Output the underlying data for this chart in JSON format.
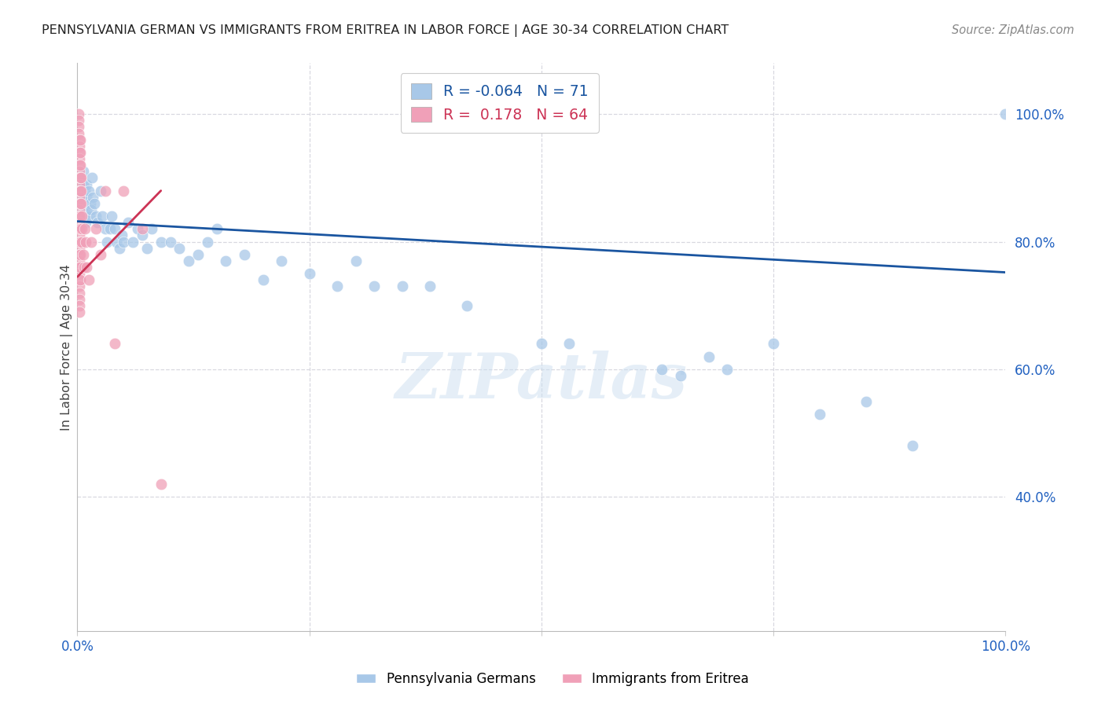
{
  "title": "PENNSYLVANIA GERMAN VS IMMIGRANTS FROM ERITREA IN LABOR FORCE | AGE 30-34 CORRELATION CHART",
  "source_text": "Source: ZipAtlas.com",
  "ylabel": "In Labor Force | Age 30-34",
  "xlim": [
    0.0,
    1.0
  ],
  "ylim": [
    0.19,
    1.08
  ],
  "blue_R": -0.064,
  "blue_N": 71,
  "pink_R": 0.178,
  "pink_N": 64,
  "blue_color": "#a8c8e8",
  "pink_color": "#f0a0b8",
  "blue_line_color": "#1a55a0",
  "pink_line_color": "#cc3355",
  "watermark": "ZIPatlas",
  "blue_scatter_x": [
    0.003,
    0.004,
    0.005,
    0.005,
    0.006,
    0.006,
    0.006,
    0.007,
    0.007,
    0.008,
    0.008,
    0.009,
    0.009,
    0.01,
    0.01,
    0.01,
    0.012,
    0.013,
    0.014,
    0.015,
    0.016,
    0.017,
    0.018,
    0.02,
    0.022,
    0.025,
    0.027,
    0.03,
    0.032,
    0.035,
    0.037,
    0.04,
    0.042,
    0.045,
    0.048,
    0.05,
    0.055,
    0.06,
    0.065,
    0.07,
    0.075,
    0.08,
    0.09,
    0.1,
    0.11,
    0.12,
    0.13,
    0.14,
    0.15,
    0.16,
    0.18,
    0.2,
    0.22,
    0.25,
    0.28,
    0.3,
    0.32,
    0.35,
    0.38,
    0.42,
    0.5,
    0.53,
    0.63,
    0.65,
    0.68,
    0.7,
    0.75,
    0.8,
    0.85,
    0.9,
    1.0
  ],
  "blue_scatter_y": [
    0.88,
    0.9,
    0.87,
    0.85,
    0.91,
    0.89,
    0.87,
    0.86,
    0.84,
    0.88,
    0.85,
    0.84,
    0.83,
    0.89,
    0.87,
    0.85,
    0.88,
    0.84,
    0.86,
    0.85,
    0.9,
    0.87,
    0.86,
    0.84,
    0.83,
    0.88,
    0.84,
    0.82,
    0.8,
    0.82,
    0.84,
    0.82,
    0.8,
    0.79,
    0.81,
    0.8,
    0.83,
    0.8,
    0.82,
    0.81,
    0.79,
    0.82,
    0.8,
    0.8,
    0.79,
    0.77,
    0.78,
    0.8,
    0.82,
    0.77,
    0.78,
    0.74,
    0.77,
    0.75,
    0.73,
    0.77,
    0.73,
    0.73,
    0.73,
    0.7,
    0.64,
    0.64,
    0.6,
    0.59,
    0.62,
    0.6,
    0.64,
    0.53,
    0.55,
    0.48,
    1.0
  ],
  "pink_scatter_x": [
    0.001,
    0.001,
    0.001,
    0.001,
    0.002,
    0.002,
    0.002,
    0.002,
    0.002,
    0.002,
    0.002,
    0.002,
    0.002,
    0.002,
    0.002,
    0.002,
    0.002,
    0.002,
    0.002,
    0.002,
    0.002,
    0.002,
    0.002,
    0.002,
    0.002,
    0.002,
    0.002,
    0.002,
    0.002,
    0.002,
    0.002,
    0.002,
    0.003,
    0.003,
    0.003,
    0.003,
    0.003,
    0.003,
    0.003,
    0.003,
    0.003,
    0.003,
    0.003,
    0.003,
    0.004,
    0.004,
    0.004,
    0.005,
    0.005,
    0.005,
    0.006,
    0.007,
    0.008,
    0.009,
    0.01,
    0.012,
    0.015,
    0.02,
    0.025,
    0.03,
    0.04,
    0.05,
    0.07,
    0.09
  ],
  "pink_scatter_y": [
    1.0,
    0.99,
    0.98,
    0.97,
    0.96,
    0.95,
    0.94,
    0.93,
    0.92,
    0.91,
    0.9,
    0.89,
    0.88,
    0.87,
    0.86,
    0.85,
    0.84,
    0.83,
    0.82,
    0.81,
    0.8,
    0.79,
    0.78,
    0.77,
    0.76,
    0.75,
    0.74,
    0.73,
    0.72,
    0.71,
    0.7,
    0.69,
    0.96,
    0.94,
    0.92,
    0.9,
    0.88,
    0.86,
    0.84,
    0.82,
    0.8,
    0.78,
    0.76,
    0.74,
    0.9,
    0.88,
    0.86,
    0.84,
    0.82,
    0.8,
    0.78,
    0.76,
    0.82,
    0.8,
    0.76,
    0.74,
    0.8,
    0.82,
    0.78,
    0.88,
    0.64,
    0.88,
    0.82,
    0.42
  ],
  "blue_trendline_x": [
    0.0,
    1.0
  ],
  "blue_trendline_y": [
    0.832,
    0.752
  ],
  "pink_trendline_x": [
    0.0,
    0.09
  ],
  "pink_trendline_y": [
    0.745,
    0.88
  ],
  "right_ytick_labels": [
    "40.0%",
    "60.0%",
    "80.0%",
    "100.0%"
  ],
  "right_ytick_vals": [
    0.4,
    0.6,
    0.8,
    1.0
  ],
  "grid_ytick_vals": [
    0.4,
    0.6,
    0.8,
    1.0
  ],
  "xtick_positions": [
    0.0,
    0.25,
    0.5,
    0.75,
    1.0
  ],
  "grid_color": "#d8d8e0",
  "background_color": "#ffffff"
}
